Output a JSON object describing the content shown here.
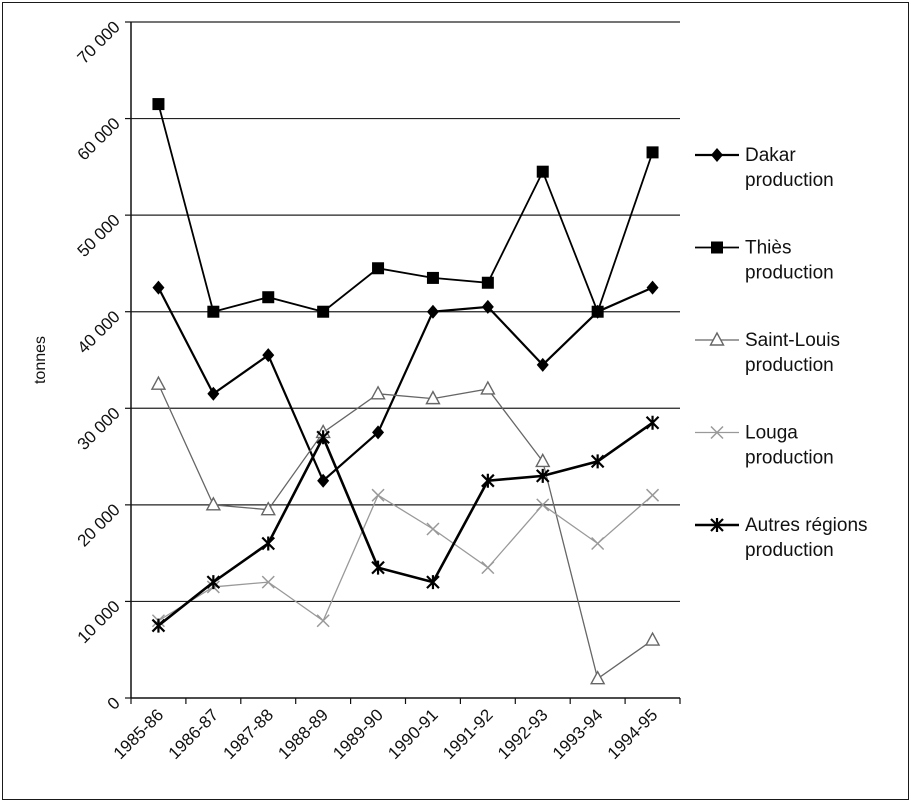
{
  "chart_data": {
    "type": "line",
    "title": "",
    "xlabel": "",
    "ylabel": "tonnes",
    "ylim": [
      0,
      70000
    ],
    "yticks": [
      0,
      10000,
      20000,
      30000,
      40000,
      50000,
      60000,
      70000
    ],
    "ytick_labels": [
      "0",
      "10 000",
      "20 000",
      "30 000",
      "40 000",
      "50 000",
      "60 000",
      "70 000"
    ],
    "grid": "horizontal",
    "legend_position": "right",
    "categories": [
      "1985-86",
      "1986-87",
      "1987-88",
      "1988-89",
      "1989-90",
      "1990-91",
      "1991-92",
      "1992-93",
      "1993-94",
      "1994-95"
    ],
    "series": [
      {
        "name": "Dakar production",
        "marker": "diamond",
        "color": "#000000",
        "values": [
          42500,
          31500,
          35500,
          22500,
          27500,
          40000,
          40500,
          34500,
          40000,
          42500
        ]
      },
      {
        "name": "Thiès production",
        "marker": "square",
        "color": "#000000",
        "values": [
          61500,
          40000,
          41500,
          40000,
          44500,
          43500,
          43000,
          54500,
          40000,
          56500
        ]
      },
      {
        "name": "Saint-Louis production",
        "marker": "triangle",
        "color": "#666666",
        "values": [
          32500,
          20000,
          19500,
          27500,
          31500,
          31000,
          32000,
          24500,
          2000,
          6000
        ]
      },
      {
        "name": "Louga production",
        "marker": "x",
        "color": "#999999",
        "values": [
          8000,
          11500,
          12000,
          8000,
          21000,
          17500,
          13500,
          20000,
          16000,
          21000
        ]
      },
      {
        "name": "Autres régions production",
        "marker": "asterisk",
        "color": "#000000",
        "values": [
          7500,
          12000,
          16000,
          27000,
          13500,
          12000,
          22500,
          23000,
          24500,
          28500
        ]
      }
    ]
  }
}
